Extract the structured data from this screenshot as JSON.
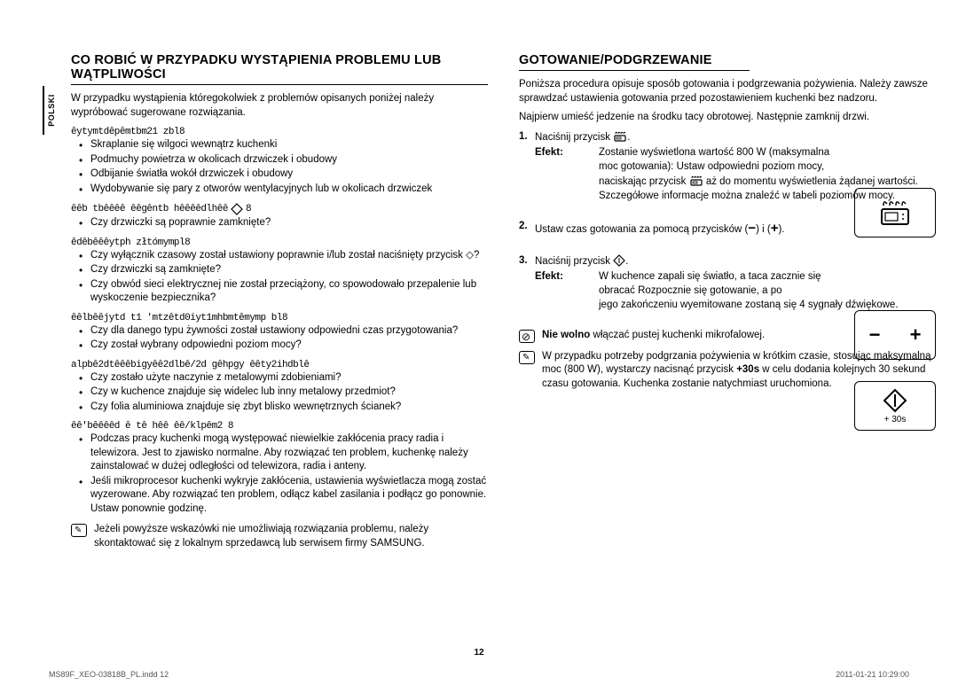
{
  "language_tab": "POLSKI",
  "page_number": "12",
  "footer": {
    "left": "MS89F_XEO-03818B_PL.indd   12",
    "right": "2011-01-21   10:29:00"
  },
  "left": {
    "title": "CO ROBIĆ W PRZYPADKU WYSTĄPIENIA PROBLEMU LUB WĄTPLIWOŚCI",
    "intro": "W przypadku wystąpienia któregokolwiek z problemów opisanych poniżej należy wypróbować sugerowane rozwiązania.",
    "sections": [
      {
        "heading": "ȇytymtdȇpȇmtbm21 zbl8",
        "bullets": [
          "Skraplanie się wilgoci wewnątrz kuchenki",
          "Podmuchy powietrza w okolicach drzwiczek i obudowy",
          "Odbijanie światła wokół drzwiczek i obudowy",
          "Wydobywanie się pary z otworów wentylacyjnych lub w okolicach drzwiczek"
        ]
      },
      {
        "heading": "ȇȇb tbȇȇȇȇ ȇȇgȇntb hȇȇȇȇdlhȇȇ",
        "trail_icon": "diamond",
        "bullets": [
          "Czy drzwiczki są poprawnie zamknięte?"
        ]
      },
      {
        "heading": "ȇdȇbȇȇȇytph złtómympl8",
        "bullets": [
          "Czy wyłącznik czasowy został ustawiony poprawnie i/lub został naciśnięty przycisk ◇?",
          "Czy drzwiczki są zamknięte?",
          "Czy obwód sieci elektrycznej nie został przeciążony, co spowodowało przepalenie lub wyskoczenie bezpiecznika?"
        ]
      },
      {
        "heading": "ȇȇlbȇȇjytd t1 'mtzȇtd0iyt1mhbmtȇmymp bl8",
        "bullets": [
          "Czy dla danego typu żywności został ustawiony odpowiedni czas przygotowania?",
          "Czy został wybrany odpowiedni poziom mocy?"
        ]
      },
      {
        "heading": "alpbȇ2dtȇȇȇbigyȇȇ2dlbȇ/2d gȇhpgy ȇȇty2ihdblȇ",
        "bullets": [
          "Czy zostało użyte naczynie z metalowymi zdobieniami?",
          "Czy w kuchence znajduje się widelec lub inny metalowy przedmiot?",
          "Czy folia aluminiowa znajduje się zbyt blisko wewnętrznych ścianek?"
        ]
      },
      {
        "heading": "ȇȇ'bȇȇȇȇd ȇ tȇ hȇȇ ȇȇ/klpȇm2 8",
        "bullets": [
          "Podczas pracy kuchenki mogą występować niewielkie zakłócenia pracy radia i telewizora. Jest to zjawisko normalne. Aby rozwiązać ten problem, kuchenkę należy zainstalować w dużej odległości od telewizora, radia i anteny.",
          "Jeśli mikroprocesor kuchenki wykryje zakłócenia, ustawienia wyświetlacza mogą zostać wyzerowane. Aby rozwiązać ten problem, odłącz kabel zasilania i podłącz go ponownie. Ustaw ponownie godzinę."
        ]
      }
    ],
    "note": "Jeżeli powyższe wskazówki nie umożliwiają rozwiązania problemu, należy skontaktować się z lokalnym sprzedawcą lub serwisem firmy SAMSUNG."
  },
  "right": {
    "title": "GOTOWANIE/PODGRZEWANIE",
    "intro1": "Poniższa procedura opisuje sposób gotowania i podgrzewania pożywienia. Należy zawsze sprawdzać ustawienia gotowania przed pozostawieniem kuchenki bez nadzoru.",
    "intro2": "Najpierw umieść jedzenie na środku tacy obrotowej. Następnie zamknij drzwi.",
    "steps": {
      "s1_text": "Naciśnij przycisk ",
      "s1_effect_label": "Efekt:",
      "s1_effect": "Zostanie wyświetlona wartość 800 W (maksymalna moc gotowania): Ustaw odpowiedni poziom mocy,",
      "s1_effect_cont": " aż do momentu wyświetlenia żądanej wartości. Szczegółowe informacje można znaleźć w tabeli poziomów mocy.",
      "s1_effect_cont_pre": "naciskając przycisk ",
      "s2_text": "Ustaw czas gotowania za pomocą przycisków (",
      "s2_text2": ") i (",
      "s2_text3": ").",
      "s3_text": "Naciśnij przycisk ",
      "s3_effect_label": "Efekt:",
      "s3_effect": "W kuchence zapali się światło, a taca zacznie się obracać Rozpocznie się gotowanie, a po",
      "s3_effect_cont": "jego zakończeniu wyemitowane zostaną się 4 sygnały dźwiękowe."
    },
    "box2": {
      "minus": "−",
      "plus": "+"
    },
    "box3_label": "+ 30s",
    "warn_bold": "Nie wolno",
    "warn_rest": " włączać pustej kuchenki mikrofalowej.",
    "tip_pre": "W przypadku potrzeby podgrzania pożywienia w krótkim czasie, stosując maksymalną moc (800 W), wystarczy nacisnąć przycisk ",
    "tip_bold": "+30s",
    "tip_post": " w celu dodania kolejnych 30 sekund czasu gotowania. Kuchenka zostanie natychmiast uruchomiona."
  }
}
